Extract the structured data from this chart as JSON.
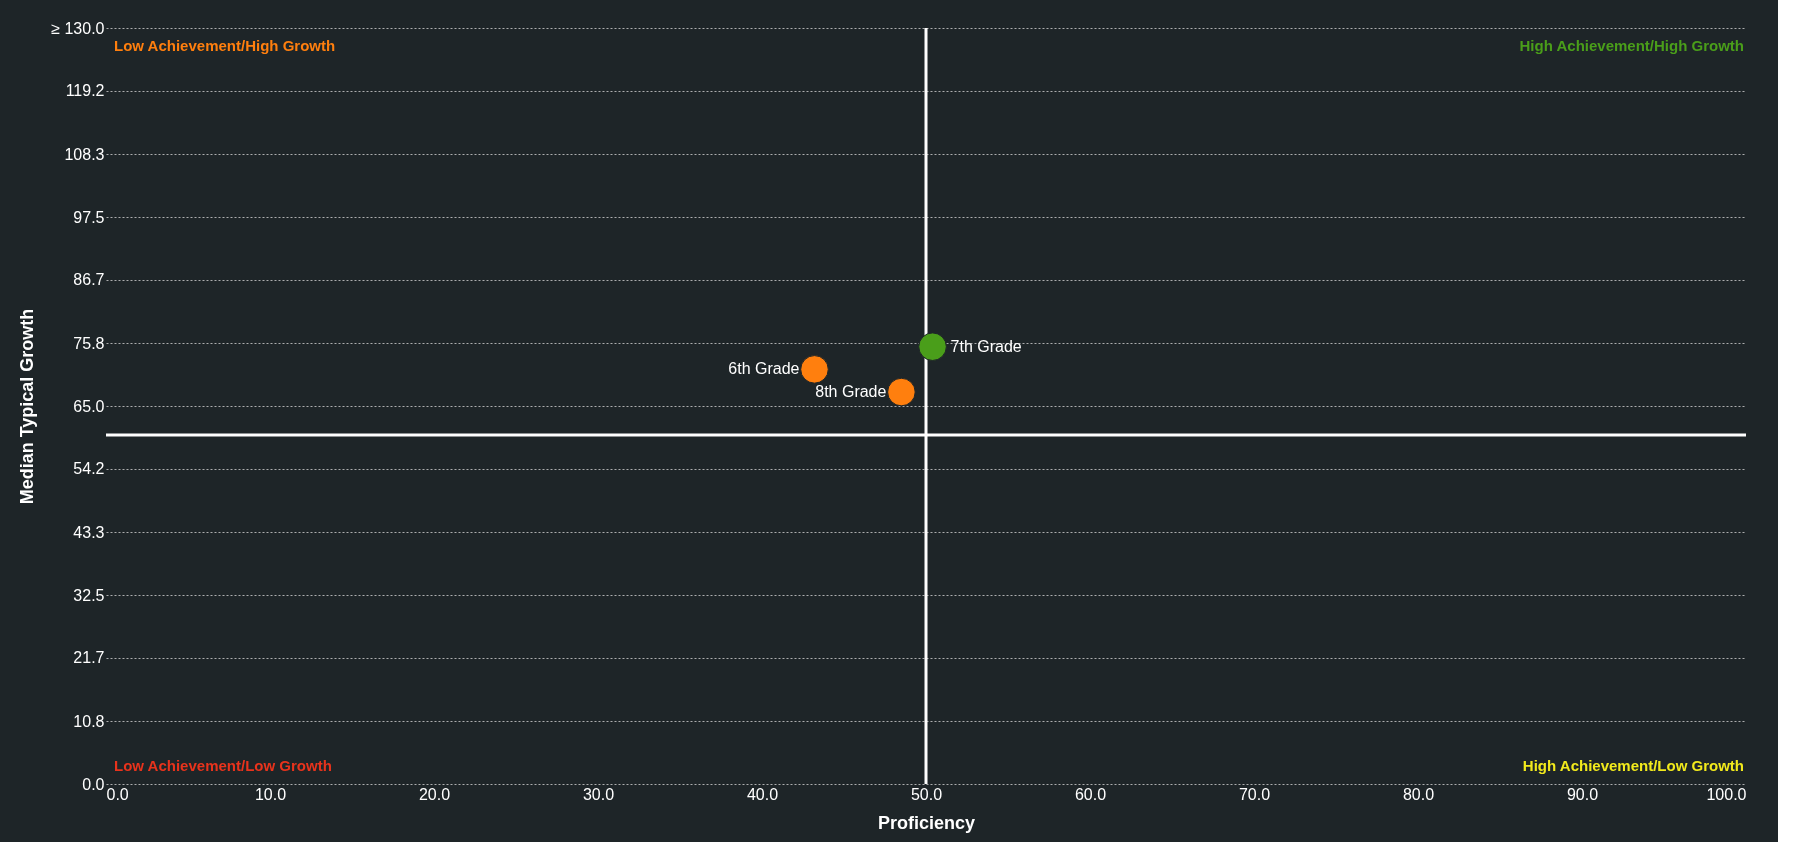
{
  "chart_data": {
    "type": "scatter",
    "xlabel": "Proficiency",
    "ylabel": "Median Typical Growth",
    "series": [
      {
        "name": "6th Grade",
        "color": "#ff7f0e",
        "x": [
          43.2
        ],
        "values": [
          71.3
        ]
      },
      {
        "name": "7th Grade",
        "color": "#4a9e1a",
        "x": [
          50.4
        ],
        "values": [
          75.2
        ]
      },
      {
        "name": "8th Grade",
        "color": "#ff7f0e",
        "x": [
          48.5
        ],
        "values": [
          67.4
        ]
      }
    ],
    "xlim": [
      0,
      100
    ],
    "xticks": [
      {
        "value": 0,
        "label": "0.0"
      },
      {
        "value": 10,
        "label": "10.0"
      },
      {
        "value": 20,
        "label": "20.0"
      },
      {
        "value": 30,
        "label": "30.0"
      },
      {
        "value": 40,
        "label": "40.0"
      },
      {
        "value": 50,
        "label": "50.0"
      },
      {
        "value": 60,
        "label": "60.0"
      },
      {
        "value": 70,
        "label": "70.0"
      },
      {
        "value": 80,
        "label": "80.0"
      },
      {
        "value": 90,
        "label": "90.0"
      },
      {
        "value": 100,
        "label": "100.0"
      }
    ],
    "ylim": [
      0,
      130
    ],
    "yticks": [
      {
        "value": 0,
        "label": "0.0"
      },
      {
        "value": 10.833,
        "label": "10.8"
      },
      {
        "value": 21.667,
        "label": "21.7"
      },
      {
        "value": 32.5,
        "label": "32.5"
      },
      {
        "value": 43.333,
        "label": "43.3"
      },
      {
        "value": 54.167,
        "label": "54.2"
      },
      {
        "value": 65,
        "label": "65.0"
      },
      {
        "value": 75.833,
        "label": "75.8"
      },
      {
        "value": 86.667,
        "label": "86.7"
      },
      {
        "value": 97.5,
        "label": "97.5"
      },
      {
        "value": 108.333,
        "label": "108.3"
      },
      {
        "value": 119.167,
        "label": "119.2"
      },
      {
        "value": 130,
        "label": "≥ 130.0"
      }
    ],
    "ref_lines": [
      {
        "axis": "x",
        "value": 50,
        "color": "#ffffff"
      },
      {
        "axis": "y",
        "value": 60,
        "color": "#ffffff"
      }
    ],
    "annotations": [
      "Low Achievement/High Growth",
      "High Achievement/High Growth",
      "Low Achievement/Low Growth",
      "High Achievement/Low Growth"
    ],
    "grid": "y",
    "legend": false,
    "marker": "circle"
  }
}
